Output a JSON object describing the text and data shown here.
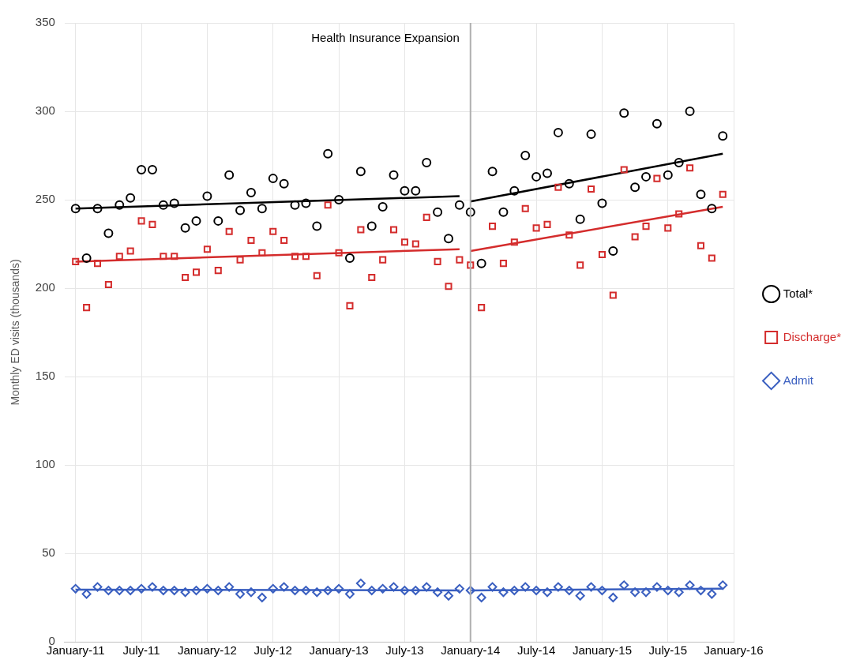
{
  "chart_data": {
    "type": "scatter",
    "ylabel": "Monthly ED visits (thousands)",
    "x": [
      "2011-01",
      "2011-02",
      "2011-03",
      "2011-04",
      "2011-05",
      "2011-06",
      "2011-07",
      "2011-08",
      "2011-09",
      "2011-10",
      "2011-11",
      "2011-12",
      "2012-01",
      "2012-02",
      "2012-03",
      "2012-04",
      "2012-05",
      "2012-06",
      "2012-07",
      "2012-08",
      "2012-09",
      "2012-10",
      "2012-11",
      "2012-12",
      "2013-01",
      "2013-02",
      "2013-03",
      "2013-04",
      "2013-05",
      "2013-06",
      "2013-07",
      "2013-08",
      "2013-09",
      "2013-10",
      "2013-11",
      "2013-12",
      "2014-01",
      "2014-02",
      "2014-03",
      "2014-04",
      "2014-05",
      "2014-06",
      "2014-07",
      "2014-08",
      "2014-09",
      "2014-10",
      "2014-11",
      "2014-12",
      "2015-01",
      "2015-02",
      "2015-03",
      "2015-04",
      "2015-05",
      "2015-06",
      "2015-07",
      "2015-08",
      "2015-09",
      "2015-10",
      "2015-11",
      "2015-12"
    ],
    "series": [
      {
        "name": "Total*",
        "color": "#000000",
        "marker": "circle",
        "values": [
          245,
          217,
          245,
          231,
          247,
          251,
          267,
          267,
          247,
          248,
          234,
          238,
          252,
          238,
          264,
          244,
          254,
          245,
          262,
          259,
          247,
          248,
          235,
          276,
          250,
          217,
          266,
          235,
          246,
          264,
          255,
          255,
          271,
          243,
          228,
          247,
          243,
          214,
          266,
          243,
          255,
          275,
          263,
          265,
          288,
          259,
          239,
          287,
          248,
          221,
          299,
          257,
          263,
          293,
          264,
          271,
          300,
          253,
          245,
          286
        ]
      },
      {
        "name": "Discharge*",
        "color": "#d42c2c",
        "marker": "square",
        "values": [
          215,
          189,
          214,
          202,
          218,
          221,
          238,
          236,
          218,
          218,
          206,
          209,
          222,
          210,
          232,
          216,
          227,
          220,
          232,
          227,
          218,
          218,
          207,
          247,
          220,
          190,
          233,
          206,
          216,
          233,
          226,
          225,
          240,
          215,
          201,
          216,
          213,
          189,
          235,
          214,
          226,
          245,
          234,
          236,
          257,
          230,
          213,
          256,
          219,
          196,
          267,
          229,
          235,
          262,
          234,
          242,
          268,
          224,
          217,
          253
        ]
      },
      {
        "name": "Admit",
        "color": "#3a5fc0",
        "marker": "diamond",
        "values": [
          30,
          27,
          31,
          29,
          29,
          29,
          30,
          31,
          29,
          29,
          28,
          29,
          30,
          29,
          31,
          27,
          28,
          25,
          30,
          31,
          29,
          29,
          28,
          29,
          30,
          27,
          33,
          29,
          30,
          31,
          29,
          29,
          31,
          28,
          26,
          30,
          29,
          25,
          31,
          28,
          29,
          31,
          29,
          28,
          31,
          29,
          26,
          31,
          29,
          25,
          32,
          28,
          28,
          31,
          29,
          28,
          32,
          29,
          27,
          32
        ]
      },
      {
        "type": "line",
        "color": "#000000",
        "marker": "none",
        "x": [
          "2011-01",
          "2013-12"
        ],
        "values": [
          245,
          252
        ]
      },
      {
        "type": "line",
        "color": "#000000",
        "marker": "none",
        "x": [
          "2014-01",
          "2015-12"
        ],
        "values": [
          249,
          276
        ]
      },
      {
        "type": "line",
        "color": "#d42c2c",
        "marker": "none",
        "x": [
          "2011-01",
          "2013-12"
        ],
        "values": [
          215,
          222
        ]
      },
      {
        "type": "line",
        "color": "#d42c2c",
        "marker": "none",
        "x": [
          "2014-01",
          "2015-12"
        ],
        "values": [
          221,
          246
        ]
      },
      {
        "type": "line",
        "color": "#3a5fc0",
        "marker": "none",
        "x": [
          "2011-01",
          "2013-12"
        ],
        "values": [
          29.5,
          29
        ]
      },
      {
        "type": "line",
        "color": "#3a5fc0",
        "marker": "none",
        "x": [
          "2014-01",
          "2015-12"
        ],
        "values": [
          29,
          30
        ]
      }
    ],
    "xlim": [
      "2010-12",
      "2016-01"
    ],
    "xticks": [
      {
        "value": "2011-01",
        "label": "January-11"
      },
      {
        "value": "2011-07",
        "label": "July-11"
      },
      {
        "value": "2012-01",
        "label": "January-12"
      },
      {
        "value": "2012-07",
        "label": "July-12"
      },
      {
        "value": "2013-01",
        "label": "January-13"
      },
      {
        "value": "2013-07",
        "label": "July-13"
      },
      {
        "value": "2014-01",
        "label": "January-14"
      },
      {
        "value": "2014-07",
        "label": "July-14"
      },
      {
        "value": "2015-01",
        "label": "January-15"
      },
      {
        "value": "2015-07",
        "label": "July-15"
      },
      {
        "value": "2016-01",
        "label": "January-16"
      }
    ],
    "ylim": [
      0,
      350
    ],
    "yticks": [
      0,
      50,
      100,
      150,
      200,
      250,
      300,
      350
    ],
    "ref_lines": [
      {
        "axis": "x",
        "value": "2014-01",
        "label": "Health Insurance Expansion",
        "color": "#b0b0b0"
      }
    ],
    "grid": true,
    "legend": "right"
  }
}
